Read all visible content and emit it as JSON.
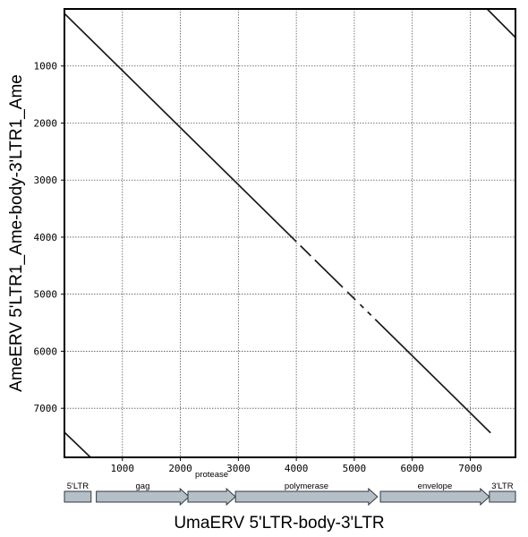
{
  "chart_data": {
    "type": "scatter",
    "subtype": "dot-plot",
    "xlabel": "UmaERV 5'LTR-body-3'LTR",
    "ylabel": "AmeERV 5'LTR1_Ame-body-3'LTR1_Ame",
    "xlim": [
      0,
      7780
    ],
    "ylim": [
      0,
      7860
    ],
    "y_inverted": true,
    "grid": true,
    "x_ticks": [
      1000,
      2000,
      3000,
      4000,
      5000,
      6000,
      7000
    ],
    "y_ticks": [
      1000,
      2000,
      3000,
      4000,
      5000,
      6000,
      7000
    ],
    "x_tick_labels": [
      "1000",
      "2000",
      "3000",
      "4000",
      "5000",
      "6000",
      "7000"
    ],
    "y_tick_labels": [
      "1000",
      "2000",
      "3000",
      "4000",
      "5000",
      "6000",
      "7000"
    ],
    "segments": [
      {
        "x": [
          0,
          4000
        ],
        "y": [
          80,
          4080
        ]
      },
      {
        "x": [
          4070,
          4250
        ],
        "y": [
          4150,
          4330
        ]
      },
      {
        "x": [
          4320,
          4800
        ],
        "y": [
          4400,
          4880
        ]
      },
      {
        "x": [
          4880,
          5020
        ],
        "y": [
          4960,
          5100
        ]
      },
      {
        "x": [
          5100,
          5160
        ],
        "y": [
          5180,
          5240
        ]
      },
      {
        "x": [
          5230,
          5290
        ],
        "y": [
          5310,
          5370
        ]
      },
      {
        "x": [
          5360,
          7350
        ],
        "y": [
          5440,
          7430
        ]
      },
      {
        "x": [
          7290,
          7780
        ],
        "y": [
          0,
          500
        ]
      },
      {
        "x": [
          0,
          450
        ],
        "y": [
          7420,
          7860
        ]
      }
    ],
    "genome_map": [
      {
        "label": "5'LTR",
        "start": 0,
        "end": 460,
        "arrow": false,
        "label_row": "top"
      },
      {
        "label": "gag",
        "start": 550,
        "end": 2150,
        "arrow": true,
        "label_row": "top"
      },
      {
        "label": "protease",
        "start": 2130,
        "end": 2950,
        "arrow": true,
        "label_row": "upper"
      },
      {
        "label": "polymerase",
        "start": 2950,
        "end": 5400,
        "arrow": true,
        "label_row": "top"
      },
      {
        "label": "envelope",
        "start": 5450,
        "end": 7330,
        "arrow": true,
        "label_row": "top"
      },
      {
        "label": "3'LTR",
        "start": 7330,
        "end": 7780,
        "arrow": false,
        "label_row": "top"
      }
    ],
    "colors": {
      "frame": "#000000",
      "grid": "#555555",
      "line": "#1a1a1a",
      "gene_fill": "#b4bfc6",
      "gene_stroke": "#2e3a42"
    }
  }
}
